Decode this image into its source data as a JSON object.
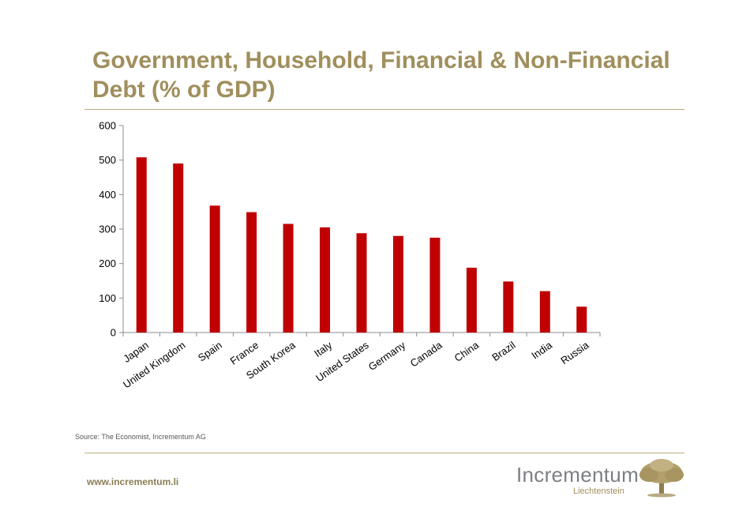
{
  "slide": {
    "title": "Government, Household, Financial & Non-Financial Debt (% of GDP)",
    "source": "Source: The Economist, Incrementum AG",
    "url": "www.incrementum.li",
    "logo": {
      "name": "Incrementum",
      "subtitle": "Liechtenstein",
      "icon": "oak-tree-icon"
    }
  },
  "colors": {
    "bar": "#c00000",
    "title": "#a08f5c",
    "rule": "#b8ab82"
  },
  "chart_data": {
    "type": "bar",
    "title": "",
    "xlabel": "",
    "ylabel": "",
    "categories": [
      "Japan",
      "United Kingdom",
      "Spain",
      "France",
      "South Korea",
      "Italy",
      "United States",
      "Germany",
      "Canada",
      "China",
      "Brazil",
      "India",
      "Russia"
    ],
    "values": [
      508,
      490,
      368,
      349,
      315,
      305,
      288,
      280,
      275,
      188,
      148,
      120,
      75
    ],
    "ylim": [
      0,
      600
    ],
    "yticks": [
      0,
      100,
      200,
      300,
      400,
      500,
      600
    ],
    "grid": false,
    "legend": "none"
  }
}
